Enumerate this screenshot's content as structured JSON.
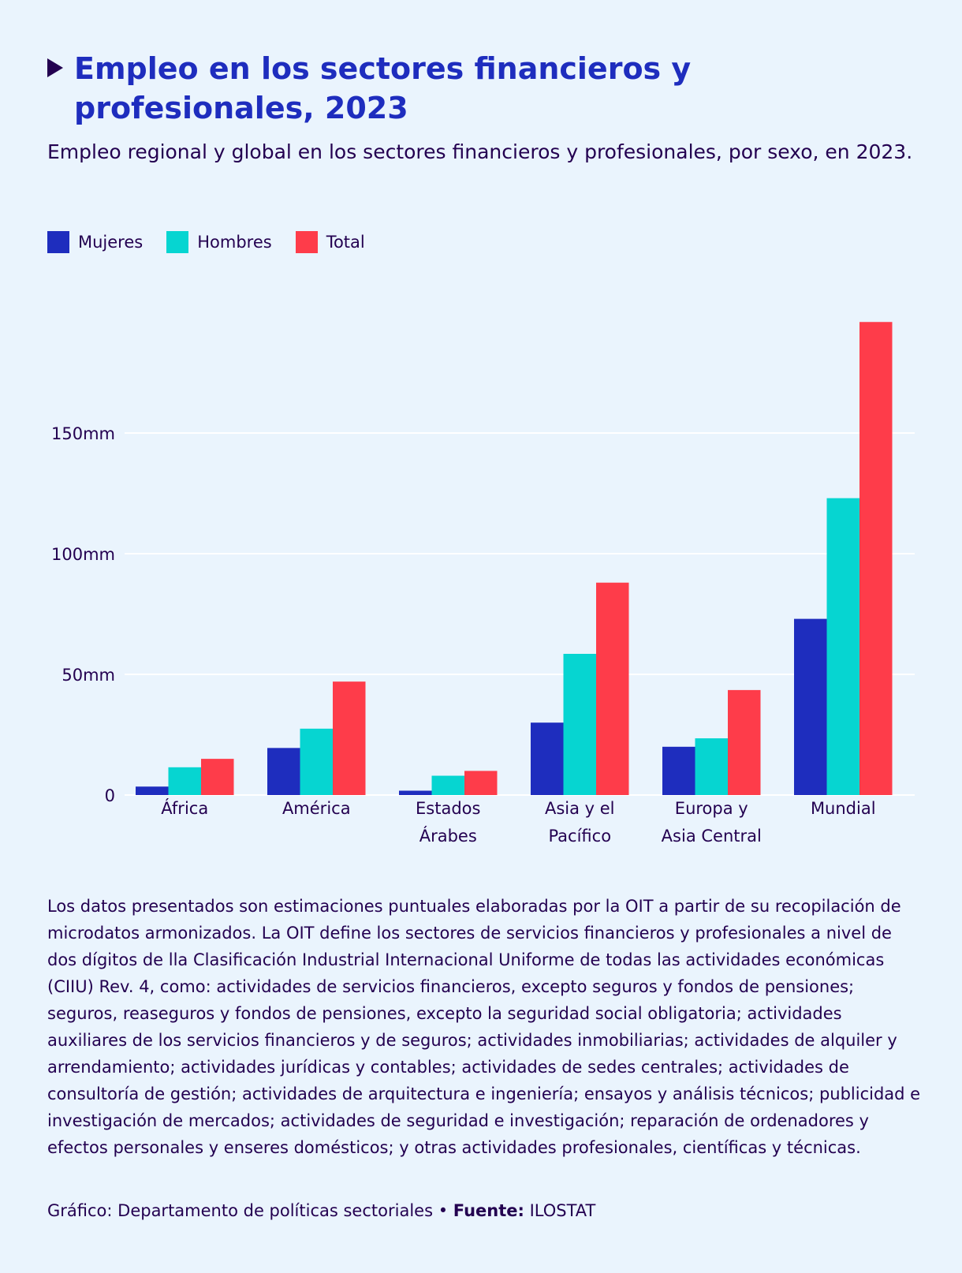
{
  "header": {
    "title": "Empleo en los sectores financieros y profesionales, 2023",
    "subtitle": "Empleo regional y global en los sectores financieros y profesionales, por sexo, en 2023."
  },
  "legend": [
    {
      "label": "Mujeres",
      "color": "#1e2dbe"
    },
    {
      "label": "Hombres",
      "color": "#06d5d1"
    },
    {
      "label": "Total",
      "color": "#fe3c4a"
    }
  ],
  "chart_data": {
    "type": "bar",
    "categories": [
      [
        "África"
      ],
      [
        "América"
      ],
      [
        "Estados",
        "Árabes"
      ],
      [
        "Asia y el",
        "Pacífico"
      ],
      [
        "Europa y",
        "Asia Central"
      ],
      [
        "Mundial"
      ]
    ],
    "series": [
      {
        "name": "Mujeres",
        "color": "#1e2dbe",
        "values": [
          3.5,
          19.5,
          1.8,
          30,
          20,
          73
        ]
      },
      {
        "name": "Hombres",
        "color": "#06d5d1",
        "values": [
          11.5,
          27.5,
          8,
          58.5,
          23.5,
          123
        ]
      },
      {
        "name": "Total",
        "color": "#fe3c4a",
        "values": [
          15,
          47,
          10,
          88,
          43.5,
          196
        ]
      }
    ],
    "y_ticks": [
      {
        "value": 0,
        "label": "0"
      },
      {
        "value": 50,
        "label": "50mm"
      },
      {
        "value": 100,
        "label": "100mm"
      },
      {
        "value": 150,
        "label": "150mm"
      }
    ],
    "ylim": [
      0,
      200
    ],
    "grid": true,
    "legend_position": "top-left"
  },
  "footnote": {
    "text": "Los datos presentados son estimaciones puntuales elaboradas por la OIT a partir de su recopilación de microdatos armonizados. La OIT define los sectores de servicios financieros y profesionales a nivel de dos dígitos de lla Clasificación Industrial Internacional Uniforme de todas las actividades económicas (CIIU) Rev. 4, como: actividades de servicios financieros, excepto seguros y fondos de pensiones; seguros, reaseguros y fondos de pensiones, excepto la seguridad social obligatoria; actividades auxiliares de los servicios financieros y de seguros; actividades inmobiliarias; actividades de alquiler y arrendamiento; actividades jurídicas y contables; actividades de sedes centrales; actividades de consultoría de gestión; actividades de arquitectura e ingeniería; ensayos y análisis técnicos; publicidad e investigación de mercados; actividades de seguridad e investigación; reparación de ordenadores y efectos personales y enseres domésticos; y otras actividades profesionales, científicas y técnicas."
  },
  "credit": {
    "graphic_label": "Gráfico: Departamento de políticas sectoriales",
    "separator": " • ",
    "source_label": "Fuente:",
    "source_value": " ILOSTAT"
  }
}
